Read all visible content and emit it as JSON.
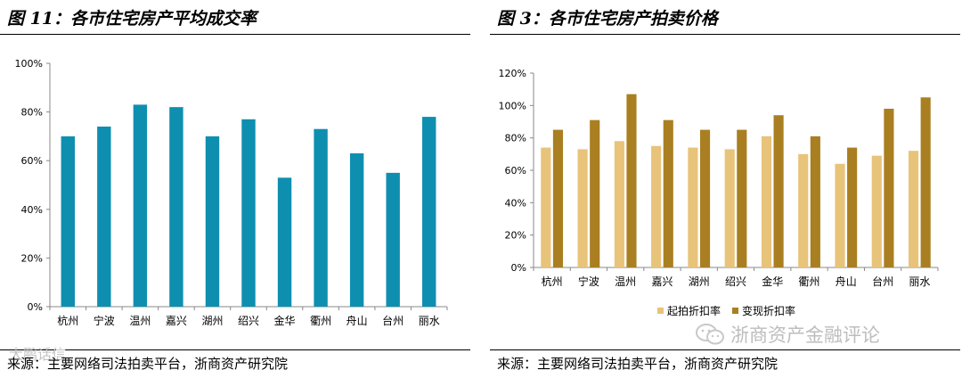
{
  "left": {
    "title": "图 11：各市住宅房产平均成交率",
    "source": "来源：主要网络司法拍卖平台，浙商资产研究院",
    "watermark": "大鹏话信"
  },
  "right": {
    "title": "图 3：各市住宅房产拍卖价格",
    "source": "来源：主要网络司法拍卖平台，浙商资产研究院",
    "watermark": "浙商资产金融评论",
    "watermark_icon": "wechat-logo-icon"
  },
  "colors": {
    "left_bar": "#0E8FB0",
    "right_series_1": "#E8C37A",
    "right_series_2": "#A97F21"
  },
  "chart_data": [
    {
      "type": "bar",
      "title": "",
      "categories": [
        "杭州",
        "宁波",
        "温州",
        "嘉兴",
        "湖州",
        "绍兴",
        "金华",
        "衢州",
        "舟山",
        "台州",
        "丽水"
      ],
      "values": [
        70,
        74,
        83,
        82,
        70,
        77,
        53,
        73,
        63,
        55,
        78
      ],
      "ylim": [
        0,
        100
      ],
      "yticks": [
        "0%",
        "20%",
        "40%",
        "60%",
        "80%",
        "100%"
      ],
      "grid": false,
      "legend": "none"
    },
    {
      "type": "bar",
      "title": "",
      "categories": [
        "杭州",
        "宁波",
        "温州",
        "嘉兴",
        "湖州",
        "绍兴",
        "金华",
        "衢州",
        "舟山",
        "台州",
        "丽水"
      ],
      "series": [
        {
          "name": "起拍折扣率",
          "values": [
            74,
            73,
            78,
            75,
            74,
            73,
            81,
            70,
            64,
            69,
            72
          ]
        },
        {
          "name": "变现折扣率",
          "values": [
            85,
            91,
            107,
            91,
            85,
            85,
            94,
            81,
            74,
            98,
            105
          ]
        }
      ],
      "ylim": [
        0,
        120
      ],
      "yticks": [
        "0%",
        "20%",
        "40%",
        "60%",
        "80%",
        "100%",
        "120%"
      ],
      "grid": false,
      "legend": "bottom"
    }
  ]
}
